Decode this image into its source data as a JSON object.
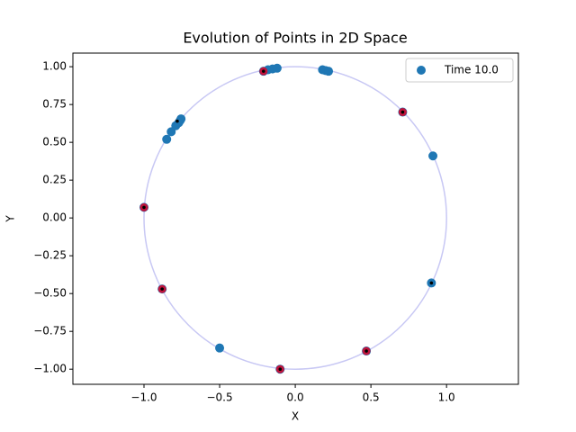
{
  "chart_data": {
    "type": "scatter",
    "title": "Evolution of Points in 2D Space",
    "x_label": "X",
    "y_label": "Y",
    "xlim": [
      -1.47,
      1.475
    ],
    "ylim": [
      -1.1,
      1.09
    ],
    "xticks": [
      {
        "value": -1.0,
        "label": "−1.0"
      },
      {
        "value": -0.5,
        "label": "−0.5"
      },
      {
        "value": 0.0,
        "label": "0.0"
      },
      {
        "value": 0.5,
        "label": "0.5"
      },
      {
        "value": 1.0,
        "label": "1.0"
      }
    ],
    "yticks": [
      {
        "value": -1.0,
        "label": "−1.00"
      },
      {
        "value": -0.75,
        "label": "−0.75"
      },
      {
        "value": -0.5,
        "label": "−0.50"
      },
      {
        "value": -0.25,
        "label": "−0.25"
      },
      {
        "value": 0.0,
        "label": "0.00"
      },
      {
        "value": 0.25,
        "label": "0.25"
      },
      {
        "value": 0.5,
        "label": "0.50"
      },
      {
        "value": 0.75,
        "label": "0.75"
      },
      {
        "value": 1.0,
        "label": "1.00"
      }
    ],
    "reference_circle": {
      "radius": 1,
      "color": "#c8c8f4"
    },
    "legend": "upper right",
    "series": [
      {
        "name": "Time 10.0",
        "color": "#1f77b4",
        "x": [
          -0.21,
          -0.18,
          -0.15,
          -0.12,
          0.18,
          0.2,
          0.22,
          0.71,
          0.91,
          0.9,
          0.47,
          -0.1,
          -0.5,
          -0.88,
          -1.0,
          -0.85,
          -0.82,
          -0.79,
          -0.77,
          -0.76,
          -0.755
        ],
        "values": [
          0.97,
          0.98,
          0.985,
          0.99,
          0.98,
          0.975,
          0.97,
          0.7,
          0.41,
          -0.43,
          -0.88,
          -1.0,
          -0.86,
          -0.47,
          0.07,
          0.52,
          0.57,
          0.61,
          0.63,
          0.645,
          0.655
        ]
      },
      {
        "color": "#c0143c",
        "x": [
          -0.21,
          0.71,
          0.47,
          -0.1,
          -0.88,
          -1.0
        ],
        "values": [
          0.97,
          0.7,
          -0.88,
          -1.0,
          -0.47,
          0.07
        ]
      },
      {
        "color": "#000000",
        "x": [
          -0.21,
          0.71,
          0.47,
          -0.1,
          -0.88,
          -1.0,
          0.9,
          -0.78
        ],
        "values": [
          0.97,
          0.7,
          -0.88,
          -1.0,
          -0.47,
          0.07,
          -0.43,
          0.64
        ]
      }
    ]
  }
}
